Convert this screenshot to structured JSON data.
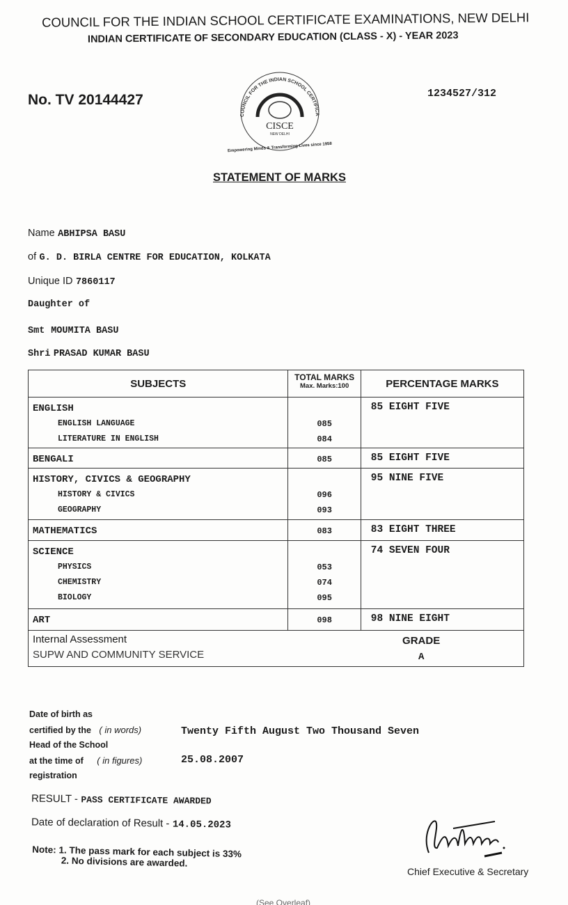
{
  "header": {
    "council": "COUNCIL FOR THE INDIAN SCHOOL CERTIFICATE EXAMINATIONS, NEW DELHI",
    "exam": "INDIAN CERTIFICATE OF SECONDARY EDUCATION (CLASS - X) - YEAR 2023",
    "cert_no": "No. TV 20144427",
    "serial": "1234527/312",
    "logo": {
      "text": "COUNCIL FOR THE INDIAN SCHOOL CERTIFICATE EXAMINATIONS",
      "abbr": "CISCE",
      "city": "NEW DELHI",
      "tagline": "Empowering Minds & Transforming Lives since 1958"
    },
    "title": "STATEMENT OF MARKS"
  },
  "student": {
    "name_label": "Name",
    "name": "ABHIPSA BASU",
    "school_label": "of",
    "school": "G. D. BIRLA CENTRE FOR EDUCATION, KOLKATA",
    "uid_label": "Unique ID",
    "uid": "7860117",
    "relation": "Daughter of",
    "mother_label": "Smt",
    "mother": "MOUMITA BASU",
    "father_label": "Shri",
    "father": "PRASAD KUMAR BASU"
  },
  "table": {
    "headers": {
      "subjects": "SUBJECTS",
      "total": "TOTAL MARKS",
      "max": "Max. Marks:100",
      "percentage": "PERCENTAGE MARKS"
    },
    "rows": [
      {
        "subject": "ENGLISH",
        "marks": "",
        "percentage": "85 EIGHT FIVE",
        "subs": [
          {
            "name": "ENGLISH LANGUAGE",
            "marks": "085"
          },
          {
            "name": "LITERATURE IN ENGLISH",
            "marks": "084"
          }
        ]
      },
      {
        "subject": "BENGALI",
        "marks": "085",
        "percentage": "85 EIGHT FIVE",
        "subs": []
      },
      {
        "subject": "HISTORY, CIVICS & GEOGRAPHY",
        "marks": "",
        "percentage": "95 NINE FIVE",
        "subs": [
          {
            "name": "HISTORY & CIVICS",
            "marks": "096"
          },
          {
            "name": "GEOGRAPHY",
            "marks": "093"
          }
        ]
      },
      {
        "subject": "MATHEMATICS",
        "marks": "083",
        "percentage": "83 EIGHT THREE",
        "subs": []
      },
      {
        "subject": "SCIENCE",
        "marks": "",
        "percentage": "74 SEVEN FOUR",
        "subs": [
          {
            "name": "PHYSICS",
            "marks": "053"
          },
          {
            "name": "CHEMISTRY",
            "marks": "074"
          },
          {
            "name": "BIOLOGY",
            "marks": "095"
          }
        ]
      },
      {
        "subject": "ART",
        "marks": "098",
        "percentage": "98 NINE EIGHT",
        "subs": []
      }
    ],
    "internal": {
      "label": "Internal Assessment",
      "subject": "SUPW AND COMMUNITY SERVICE",
      "grade_label": "GRADE",
      "grade": "A"
    }
  },
  "dob": {
    "l1": "Date of birth as",
    "l2": "certified by the",
    "l3": "Head of the School",
    "l4": "at the time of",
    "l5": "registration",
    "words_label": "( in words)",
    "figures_label": "( in figures)",
    "words": "Twenty Fifth August Two Thousand Seven",
    "figures": "25.08.2007"
  },
  "result": {
    "label": "RESULT -",
    "value": "PASS CERTIFICATE AWARDED",
    "decl_label": "Date of declaration of Result -",
    "decl_date": "14.05.2023"
  },
  "notes": {
    "label": "Note:",
    "n1": "1. The pass mark for each subject is 33%",
    "n2": "2. No divisions are awarded."
  },
  "signature": {
    "signature_text": "Mathur",
    "title": "Chief Executive & Secretary"
  },
  "footer": {
    "overleaf": "(See Overleaf)"
  }
}
